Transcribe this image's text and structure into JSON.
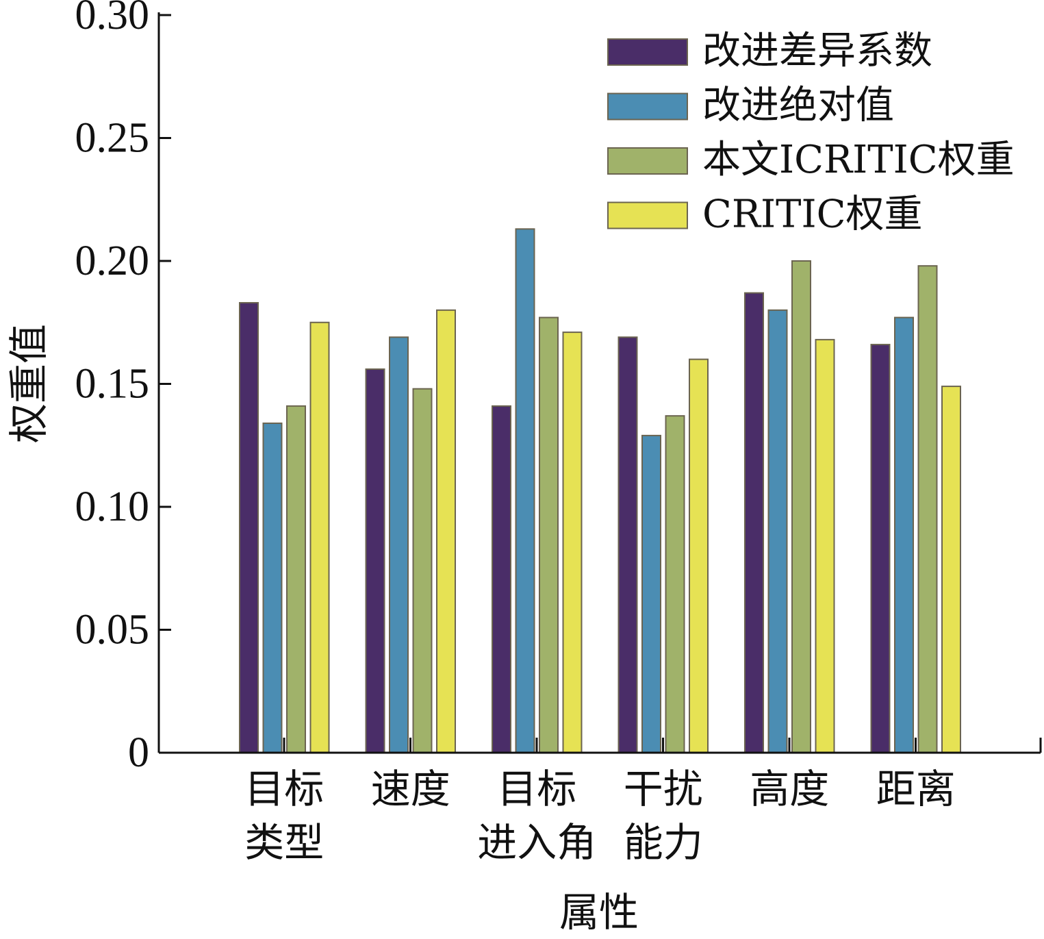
{
  "chart_data": {
    "type": "bar",
    "categories": [
      [
        "目标",
        "类型"
      ],
      [
        "速度"
      ],
      [
        "目标",
        "进入角"
      ],
      [
        "干扰",
        "能力"
      ],
      [
        "高度"
      ],
      [
        "距离"
      ]
    ],
    "series": [
      {
        "name": "改进差异系数",
        "color": "#4a2d68",
        "values": [
          0.183,
          0.156,
          0.141,
          0.169,
          0.187,
          0.166
        ]
      },
      {
        "name": "改进绝对值",
        "color": "#4b8db3",
        "values": [
          0.134,
          0.169,
          0.213,
          0.129,
          0.18,
          0.177
        ]
      },
      {
        "name": "本文ICRITIC权重",
        "color": "#a0b26a",
        "values": [
          0.141,
          0.148,
          0.177,
          0.137,
          0.2,
          0.198
        ]
      },
      {
        "name": "CRITIC权重",
        "color": "#e6e254",
        "values": [
          0.175,
          0.18,
          0.171,
          0.16,
          0.168,
          0.149
        ]
      }
    ],
    "ylim": [
      0,
      0.3
    ],
    "yticks": [
      "0",
      "0.05",
      "0.10",
      "0.15",
      "0.20",
      "0.25",
      "0.30"
    ],
    "ytick_values": [
      0,
      0.05,
      0.1,
      0.15,
      0.2,
      0.25,
      0.3
    ],
    "xlabel": "属性",
    "ylabel": "权重值",
    "legend_position": "top-right",
    "grid": false
  }
}
